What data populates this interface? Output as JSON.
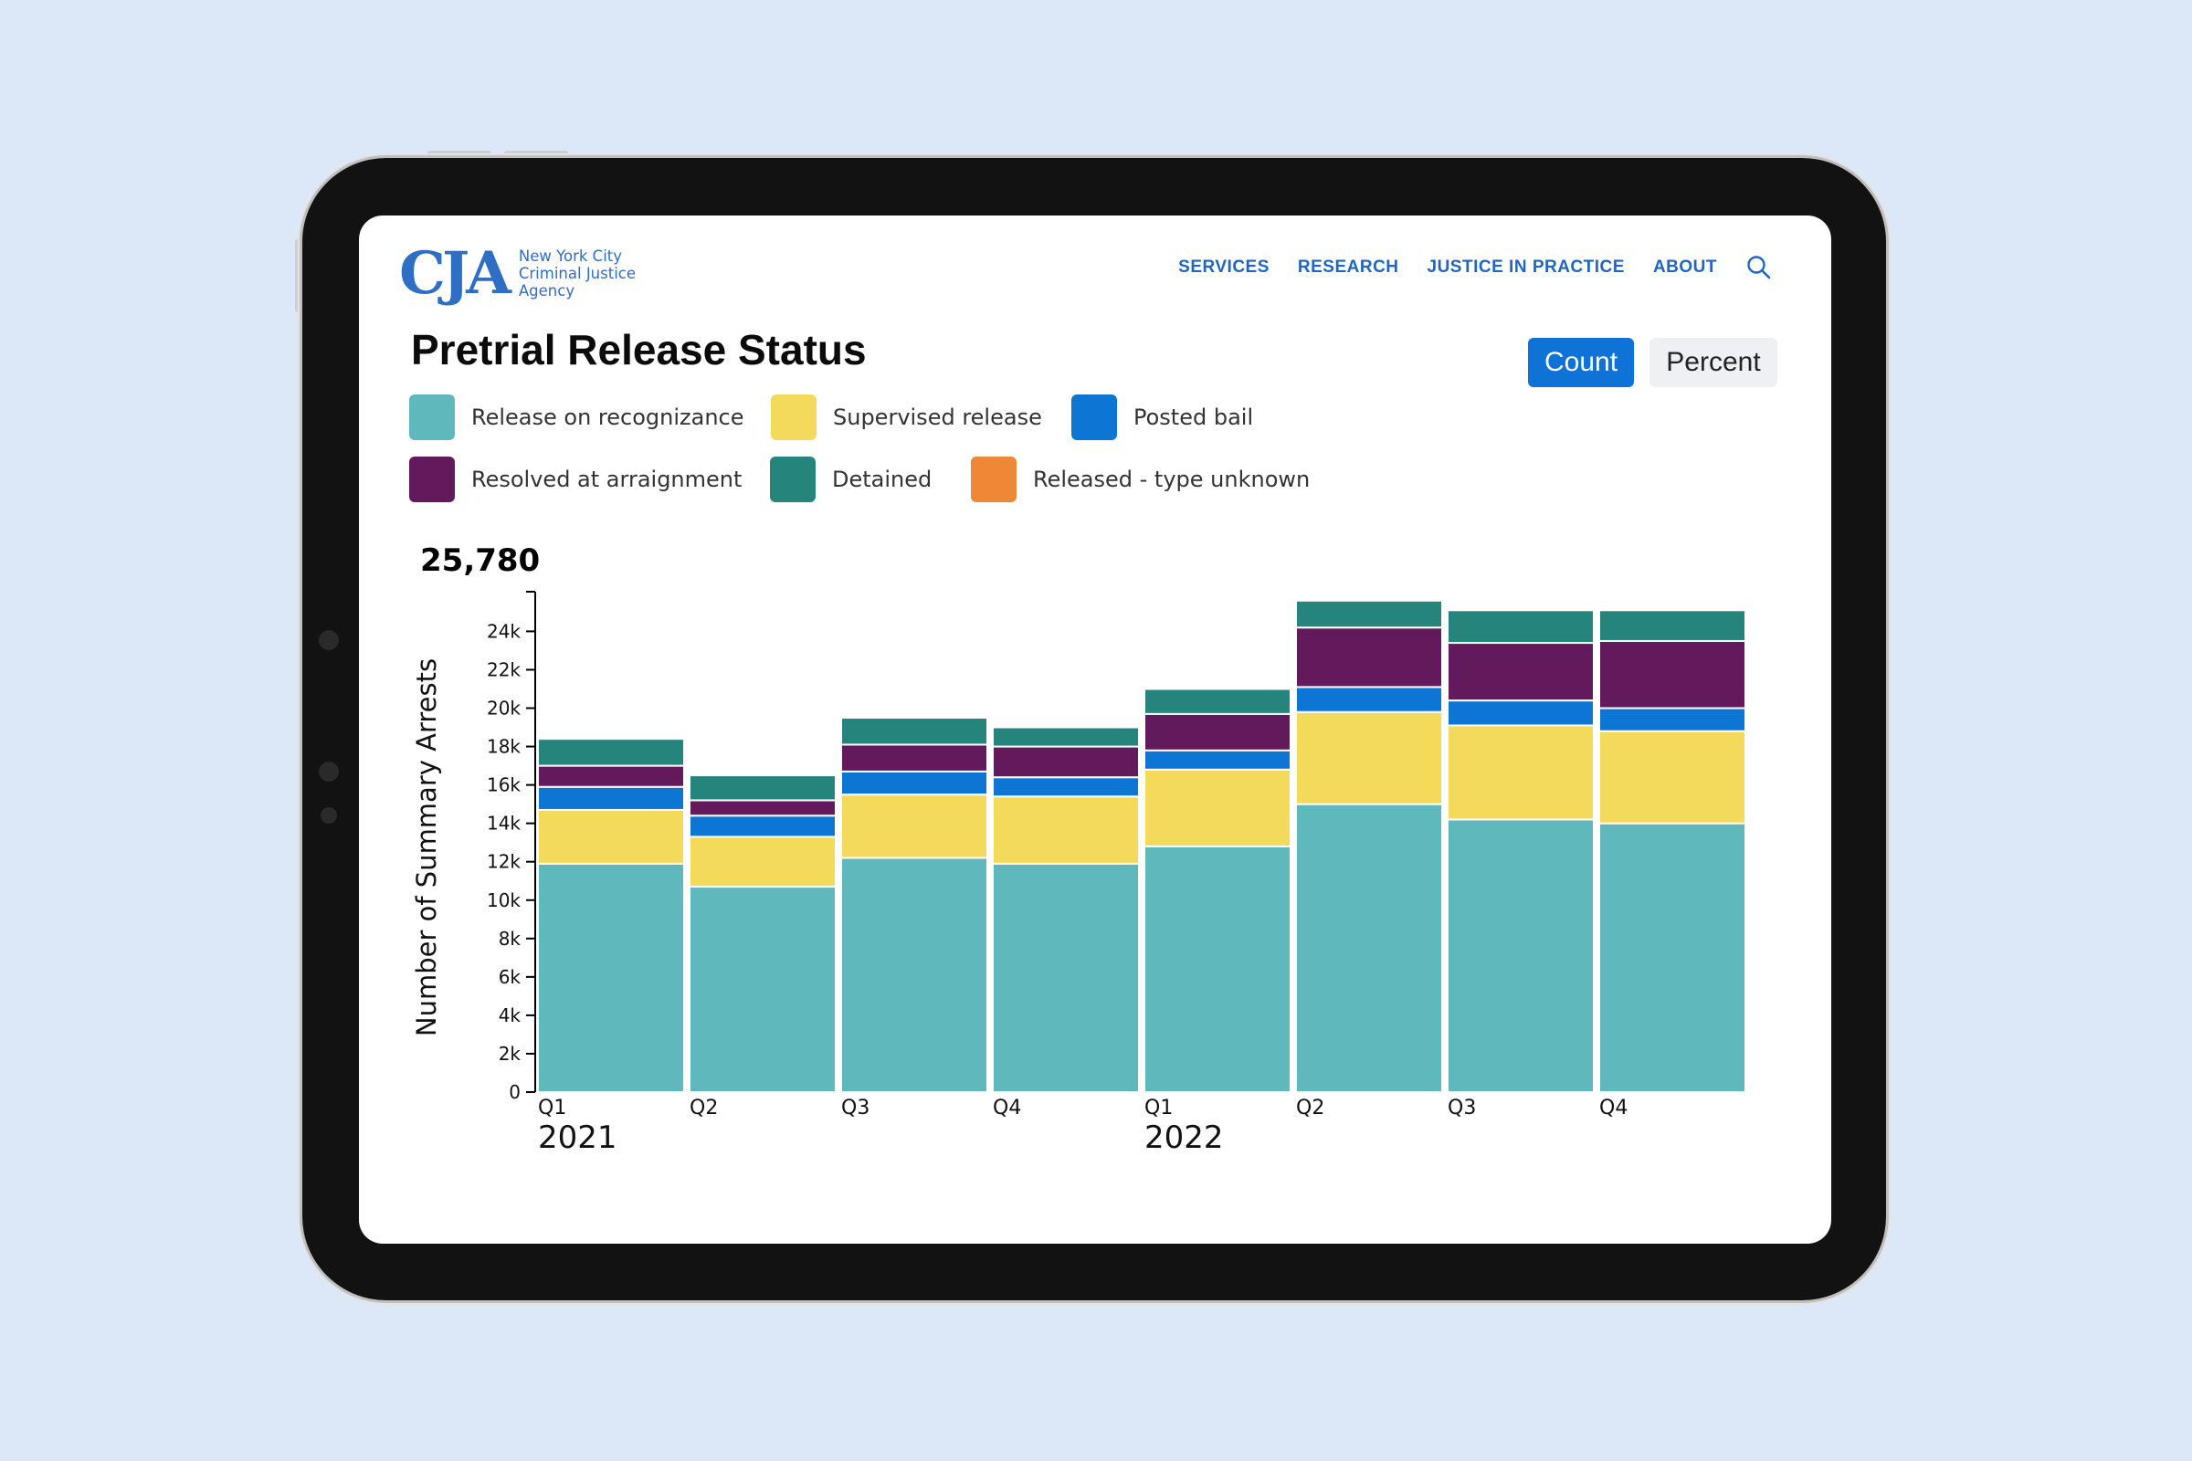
{
  "logo": {
    "mark": "CJA",
    "line1": "New York City",
    "line2": "Criminal Justice",
    "line3": "Agency"
  },
  "nav": {
    "items": [
      "SERVICES",
      "RESEARCH",
      "JUSTICE IN PRACTICE",
      "ABOUT"
    ]
  },
  "page_title": "Pretrial Release Status",
  "toggles": {
    "count": "Count",
    "percent": "Percent",
    "active": "Count"
  },
  "total_label": "25,780",
  "colors": {
    "ror": "#5eb8bc",
    "supervised": "#f4da5a",
    "bail": "#0d76d4",
    "resolved": "#621a5c",
    "detained": "#25857c",
    "unknown": "#ee8837"
  },
  "legend": [
    {
      "label": "Release on recognizance",
      "color": "#5eb8bc"
    },
    {
      "label": "Supervised release",
      "color": "#f4da5a"
    },
    {
      "label": "Posted bail",
      "color": "#0d76d4"
    },
    {
      "label": "Resolved at arraignment",
      "color": "#621a5c"
    },
    {
      "label": "Detained",
      "color": "#25857c"
    },
    {
      "label": "Released - type unknown",
      "color": "#ee8837"
    }
  ],
  "chart_data": {
    "type": "bar",
    "stacked": true,
    "categories": [
      "Q1",
      "Q2",
      "Q3",
      "Q4",
      "Q1",
      "Q2",
      "Q3",
      "Q4"
    ],
    "year_labels": [
      "2021",
      "",
      "",
      "",
      "2022",
      "",
      "",
      ""
    ],
    "ylabel": "Number of Summary Arrests",
    "xlabel": "",
    "ylim": [
      0,
      25780
    ],
    "yticks": [
      0,
      2000,
      4000,
      6000,
      8000,
      10000,
      12000,
      14000,
      16000,
      18000,
      20000,
      22000,
      24000
    ],
    "ytick_labels": [
      "0",
      "2k",
      "4k",
      "6k",
      "8k",
      "10k",
      "12k",
      "14k",
      "16k",
      "18k",
      "20k",
      "22k",
      "24k"
    ],
    "series": [
      {
        "name": "Release on recognizance",
        "values": [
          11900,
          10700,
          12200,
          11900,
          12800,
          15000,
          14200,
          14000
        ]
      },
      {
        "name": "Supervised release",
        "values": [
          2800,
          2600,
          3300,
          3500,
          4000,
          4800,
          4900,
          4800
        ]
      },
      {
        "name": "Posted bail",
        "values": [
          1200,
          1100,
          1200,
          1000,
          1000,
          1300,
          1300,
          1200
        ]
      },
      {
        "name": "Resolved at arraignment",
        "values": [
          1100,
          800,
          1400,
          1600,
          1900,
          3100,
          3000,
          3500
        ]
      },
      {
        "name": "Detained",
        "values": [
          1400,
          1300,
          1400,
          1000,
          1300,
          1400,
          1700,
          1600
        ]
      },
      {
        "name": "Released - type unknown",
        "values": [
          0,
          0,
          0,
          0,
          0,
          0,
          0,
          0
        ]
      }
    ]
  }
}
